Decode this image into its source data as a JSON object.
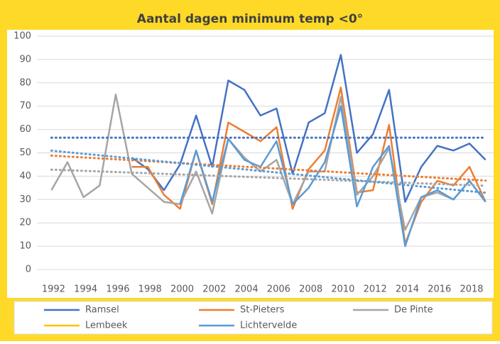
{
  "chart_data": {
    "type": "line",
    "title": "Aantal dagen minimum temp <0°",
    "x": [
      1992,
      1993,
      1994,
      1995,
      1996,
      1997,
      1998,
      1999,
      2000,
      2001,
      2002,
      2003,
      2004,
      2005,
      2006,
      2007,
      2008,
      2009,
      2010,
      2011,
      2012,
      2013,
      2014,
      2015,
      2016,
      2017,
      2018,
      2019
    ],
    "series": [
      {
        "name": "Ramsel",
        "color": "#4472c4",
        "values": [
          null,
          null,
          null,
          null,
          null,
          48,
          43,
          34,
          45,
          66,
          44,
          81,
          77,
          66,
          69,
          41,
          63,
          67,
          92,
          50,
          58,
          77,
          29,
          44,
          53,
          51,
          54,
          47
        ]
      },
      {
        "name": "St-Pieters",
        "color": "#ed7d31",
        "values": [
          null,
          null,
          null,
          null,
          null,
          44,
          44,
          32,
          26,
          51,
          28,
          63,
          59,
          55,
          61,
          26,
          43,
          51,
          78,
          33,
          34,
          62,
          11,
          29,
          38,
          36,
          44,
          29
        ]
      },
      {
        "name": "De Pinte",
        "color": "#a5a5a5",
        "values": [
          34,
          46,
          31,
          36,
          75,
          41,
          35,
          29,
          28,
          42,
          24,
          56,
          48,
          42,
          47,
          28,
          42,
          42,
          74,
          32,
          40,
          52,
          17,
          31,
          33,
          30,
          38,
          29
        ]
      },
      {
        "name": "Lembeek",
        "color": "#ffc000",
        "values": [
          null,
          null,
          null,
          null,
          null,
          null,
          null,
          null,
          null,
          null,
          null,
          null,
          null,
          null,
          null,
          null,
          null,
          null,
          null,
          null,
          null,
          null,
          null,
          null,
          null,
          null,
          null,
          null
        ]
      },
      {
        "name": "Lichtervelde",
        "color": "#5b9bd5",
        "values": [
          null,
          null,
          null,
          null,
          null,
          null,
          null,
          null,
          28,
          51,
          29,
          56,
          47,
          44,
          55,
          28,
          35,
          46,
          70,
          27,
          44,
          53,
          10,
          31,
          34,
          30,
          38,
          29
        ]
      }
    ],
    "trendlines": true,
    "xlim": [
      1991.1,
      2019.5
    ],
    "xticks": [
      1992,
      1994,
      1996,
      1998,
      2000,
      2002,
      2004,
      2006,
      2008,
      2010,
      2012,
      2014,
      2016,
      2018
    ],
    "ylim": [
      0,
      100
    ],
    "yticks": [
      0,
      10,
      20,
      30,
      40,
      50,
      60,
      70,
      80,
      90,
      100
    ],
    "grid": true
  }
}
